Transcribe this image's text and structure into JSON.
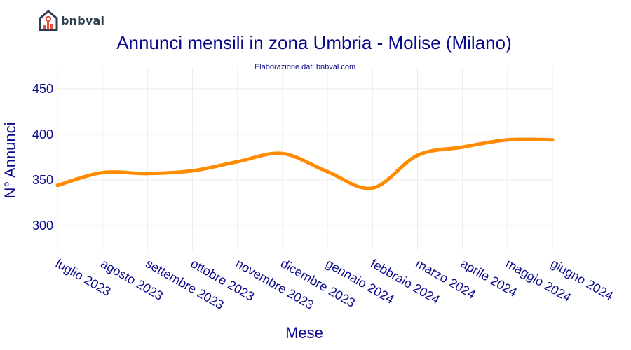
{
  "brand": {
    "name": "bnbval"
  },
  "chart_data": {
    "type": "line",
    "title": "Annunci mensili in zona Umbria - Molise (Milano)",
    "subtitle": "Elaborazione dati bnbval.com",
    "xlabel": "Mese",
    "ylabel": "N° Annunci",
    "categories": [
      "luglio 2023",
      "agosto 2023",
      "settembre 2023",
      "ottobre 2023",
      "novembre 2023",
      "dicembre 2023",
      "gennaio 2024",
      "febbraio 2024",
      "marzo 2024",
      "aprile 2024",
      "maggio 2024",
      "giugno 2024"
    ],
    "values": [
      344,
      358,
      357,
      360,
      370,
      379,
      359,
      341,
      377,
      386,
      394,
      394
    ],
    "ylim": [
      273,
      473
    ],
    "yticks": [
      300,
      350,
      400,
      450
    ],
    "grid": true,
    "line_color": "#ff8c00"
  }
}
